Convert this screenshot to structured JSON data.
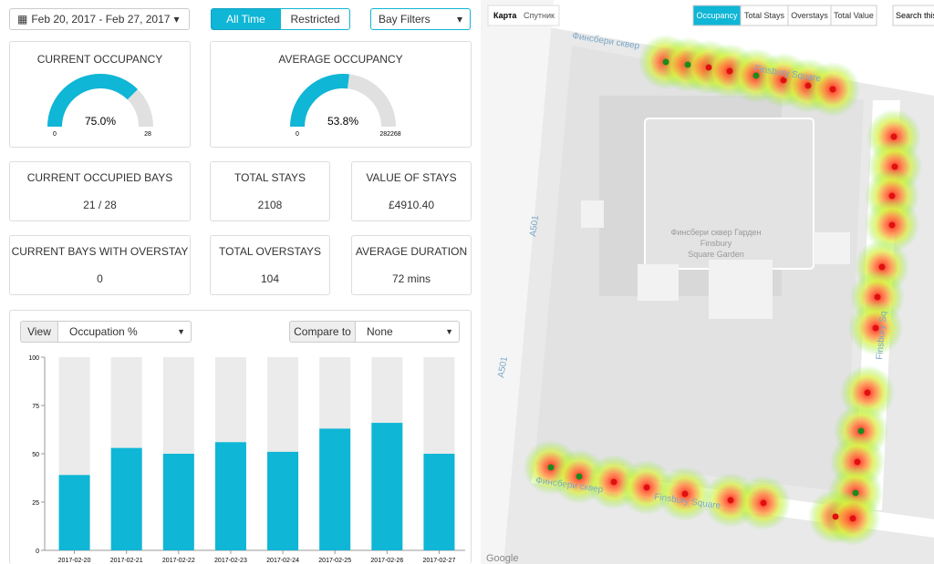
{
  "header": {
    "date_range": "Feb 20, 2017 - Feb 27, 2017",
    "toggles": [
      "All Time",
      "Restricted"
    ],
    "bay_filters": "Bay Filters"
  },
  "gauges": [
    {
      "title": "CURRENT OCCUPANCY",
      "value": 75.0,
      "value_label": "75.0%",
      "min": 0,
      "max": 28
    },
    {
      "title": "AVERAGE OCCUPANCY",
      "value": 53.8,
      "value_label": "53.8%",
      "min": 0,
      "max": 282268
    }
  ],
  "stats": [
    {
      "title": "CURRENT OCCUPIED BAYS",
      "value": "21 / 28"
    },
    {
      "title": "TOTAL STAYS",
      "value": "2108"
    },
    {
      "title": "VALUE OF STAYS",
      "value": "£4910.40"
    },
    {
      "title": "CURRENT BAYS WITH OVERSTAY",
      "value": "0"
    },
    {
      "title": "TOTAL OVERSTAYS",
      "value": "104"
    },
    {
      "title": "AVERAGE DURATION",
      "value": "72 mins"
    }
  ],
  "controls": {
    "view_label": "View",
    "view_value": "Occupation %",
    "compare_label": "Compare to",
    "compare_value": "None"
  },
  "chart": {
    "type": "bar",
    "categories": [
      "2017-02-20",
      "2017-02-21",
      "2017-02-22",
      "2017-02-23",
      "2017-02-24",
      "2017-02-25",
      "2017-02-26",
      "2017-02-27"
    ],
    "values": [
      39,
      53,
      50,
      56,
      51,
      63,
      66,
      50
    ],
    "color": "#0fb6d6",
    "background_color": "#ebebeb",
    "ylim": [
      0,
      100
    ],
    "yticks": [
      0,
      25,
      50,
      75,
      100
    ]
  },
  "map": {
    "map_types": [
      "Карта",
      "Спутник"
    ],
    "layers": [
      "Occupancy",
      "Total Stays",
      "Overstays",
      "Total Value"
    ],
    "search": "Search this",
    "labels": [
      "Финсбери сквер",
      "Finsbury Square",
      "A501",
      "Финсбери сквер Гарден",
      "Finsbury",
      "Square Garden",
      "A501",
      "Финсбери сквер",
      "Finsbury Square",
      "Finsbury Sq"
    ],
    "logo": "Google"
  }
}
